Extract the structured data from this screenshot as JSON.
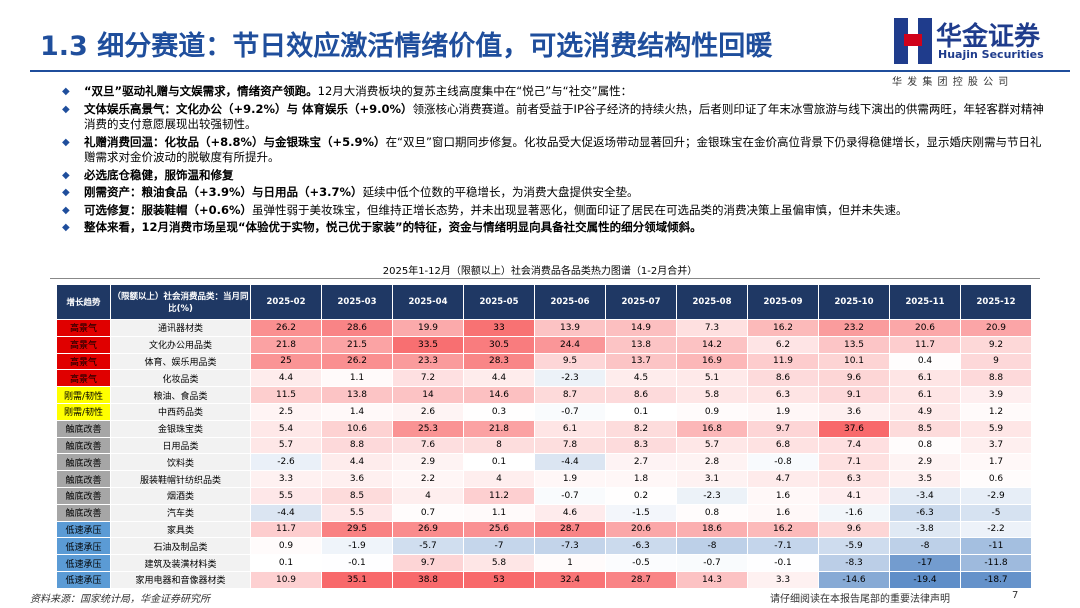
{
  "header": {
    "title": "1.3 细分赛道：节日效应激活情绪价值，可选消费结构性回暖",
    "logo_cn": "华金证券",
    "logo_en": "Huajin Securities",
    "logo_sub": "华 发 集 团 控 股 公 司"
  },
  "bullets": [
    [
      {
        "text": "“双旦”驱动礼赠与文娱需求，情绪资产领跑。",
        "bold": true
      },
      {
        "text": "12月大消费板块的复苏主线高度集中在“悦己”与“社交”属性：",
        "bold": false
      }
    ],
    [
      {
        "text": "文体娱乐高景气：文化办公（+9.2%）与 体育娱乐（+9.0%）",
        "bold": true
      },
      {
        "text": "领涨核心消费赛道。前者受益于IP谷子经济的持续火热，后者则印证了年末冰雪旅游与线下演出的供需两旺，年轻客群对精神消费的支付意愿展现出较强韧性。",
        "bold": false
      }
    ],
    [
      {
        "text": "礼赠消费回温：化妆品（+8.8%）与金银珠宝（+5.9%）",
        "bold": true
      },
      {
        "text": "在“双旦”窗口期同步修复。化妆品受大促返场带动显著回升；金银珠宝在金价高位背景下仍录得稳健增长，显示婚庆刚需与节日礼赠需求对金价波动的脱敏度有所提升。",
        "bold": false
      }
    ],
    [
      {
        "text": "必选底仓稳健，服饰温和修复",
        "bold": true
      }
    ],
    [
      {
        "text": "刚需资产：粮油食品（+3.9%）与日用品（+3.7%）",
        "bold": true
      },
      {
        "text": "延续中低个位数的平稳增长，为消费大盘提供安全垫。",
        "bold": false
      }
    ],
    [
      {
        "text": "可选修复：服装鞋帽（+0.6%）",
        "bold": true
      },
      {
        "text": "虽弹性弱于美妆珠宝，但维持正增长态势，并未出现显著恶化，侧面印证了居民在可选品类的消费决策上虽偏审慎，但并未失速。",
        "bold": false
      }
    ],
    [
      {
        "text": "整体来看，12月消费市场呈现“体验优于实物，悦己优于家装”的特征，资金与情绪明显向具备社交属性的细分领域倾斜。",
        "bold": true
      }
    ]
  ],
  "table": {
    "title": "2025年1-12月（限额以上）社会消费品各品类热力图谱（1-2月合并）",
    "headers": [
      "增长趋势",
      "（限额以上）社会消费品类：当月同比(%)",
      "2025-02",
      "2025-03",
      "2025-04",
      "2025-05",
      "2025-06",
      "2025-07",
      "2025-08",
      "2025-09",
      "2025-10",
      "2025-11",
      "2025-12"
    ],
    "rows": [
      {
        "trend": "高景气",
        "trend_color": "#e00000",
        "name": "通讯器材类",
        "values": [
          26.2,
          28.6,
          19.9,
          33,
          13.9,
          14.9,
          7.3,
          16.2,
          23.2,
          20.6,
          20.9
        ]
      },
      {
        "trend": "高景气",
        "trend_color": "#e00000",
        "name": "文化办公用品类",
        "values": [
          21.8,
          21.5,
          33.5,
          30.5,
          24.4,
          13.8,
          14.2,
          6.2,
          13.5,
          11.7,
          9.2
        ]
      },
      {
        "trend": "高景气",
        "trend_color": "#e00000",
        "name": "体育、娱乐用品类",
        "values": [
          25,
          26.2,
          23.3,
          28.3,
          9.5,
          13.7,
          16.9,
          11.9,
          10.1,
          0.4,
          9
        ]
      },
      {
        "trend": "高景气",
        "trend_color": "#e00000",
        "name": "化妆品类",
        "values": [
          4.4,
          1.1,
          7.2,
          4.4,
          -2.3,
          4.5,
          5.1,
          8.6,
          9.6,
          6.1,
          8.8
        ]
      },
      {
        "trend": "刚需/韧性",
        "trend_color": "#ffff00",
        "name": "粮油、食品类",
        "values": [
          11.5,
          13.8,
          14,
          14.6,
          8.7,
          8.6,
          5.8,
          6.3,
          9.1,
          6.1,
          3.9
        ]
      },
      {
        "trend": "刚需/韧性",
        "trend_color": "#ffff00",
        "name": "中西药品类",
        "values": [
          2.5,
          1.4,
          2.6,
          0.3,
          -0.7,
          0.1,
          0.9,
          1.9,
          3.6,
          4.9,
          1.2
        ]
      },
      {
        "trend": "触底改善",
        "trend_color": "#a6a6a6",
        "name": "金银珠宝类",
        "values": [
          5.4,
          10.6,
          25.3,
          21.8,
          6.1,
          8.2,
          16.8,
          9.7,
          37.6,
          8.5,
          5.9
        ]
      },
      {
        "trend": "触底改善",
        "trend_color": "#a6a6a6",
        "name": "日用品类",
        "values": [
          5.7,
          8.8,
          7.6,
          8,
          7.8,
          8.3,
          5.7,
          6.8,
          7.4,
          0.8,
          3.7
        ]
      },
      {
        "trend": "触底改善",
        "trend_color": "#a6a6a6",
        "name": "饮料类",
        "values": [
          -2.6,
          4.4,
          2.9,
          0.1,
          -4.4,
          2.7,
          2.8,
          -0.8,
          7.1,
          2.9,
          1.7
        ]
      },
      {
        "trend": "触底改善",
        "trend_color": "#a6a6a6",
        "name": "服装鞋帽针纺织品类",
        "values": [
          3.3,
          3.6,
          2.2,
          4,
          1.9,
          1.8,
          3.1,
          4.7,
          6.3,
          3.5,
          0.6
        ]
      },
      {
        "trend": "触底改善",
        "trend_color": "#a6a6a6",
        "name": "烟酒类",
        "values": [
          5.5,
          8.5,
          4,
          11.2,
          -0.7,
          0.2,
          -2.3,
          1.6,
          4.1,
          -3.4,
          -2.9
        ]
      },
      {
        "trend": "触底改善",
        "trend_color": "#a6a6a6",
        "name": "汽车类",
        "values": [
          -4.4,
          5.5,
          0.7,
          1.1,
          4.6,
          -1.5,
          0.8,
          1.6,
          -1.6,
          -6.3,
          -5
        ]
      },
      {
        "trend": "低速承压",
        "trend_color": "#5b9bd5",
        "name": "家具类",
        "values": [
          11.7,
          29.5,
          26.9,
          25.6,
          28.7,
          20.6,
          18.6,
          16.2,
          9.6,
          -3.8,
          -2.2
        ]
      },
      {
        "trend": "低速承压",
        "trend_color": "#5b9bd5",
        "name": "石油及制品类",
        "values": [
          0.9,
          -1.9,
          -5.7,
          -7,
          -7.3,
          -6.3,
          -8,
          -7.1,
          -5.9,
          -8,
          -11
        ]
      },
      {
        "trend": "低速承压",
        "trend_color": "#5b9bd5",
        "name": "建筑及装潢材料类",
        "values": [
          0.1,
          -0.1,
          9.7,
          5.8,
          1,
          -0.5,
          -0.7,
          -0.1,
          -8.3,
          -17,
          -11.8
        ]
      },
      {
        "trend": "低速承压",
        "trend_color": "#5b9bd5",
        "name": "家用电器和音像器材类",
        "values": [
          10.9,
          35.1,
          38.8,
          53,
          32.4,
          28.7,
          14.3,
          3.3,
          -14.6,
          -19.4,
          -18.7
        ]
      }
    ]
  },
  "footer": {
    "source": "资料来源：国家统计局，华金证券研究所",
    "disclaimer": "请仔细阅读在本报告尾部的重要法律声明",
    "page": "7"
  }
}
